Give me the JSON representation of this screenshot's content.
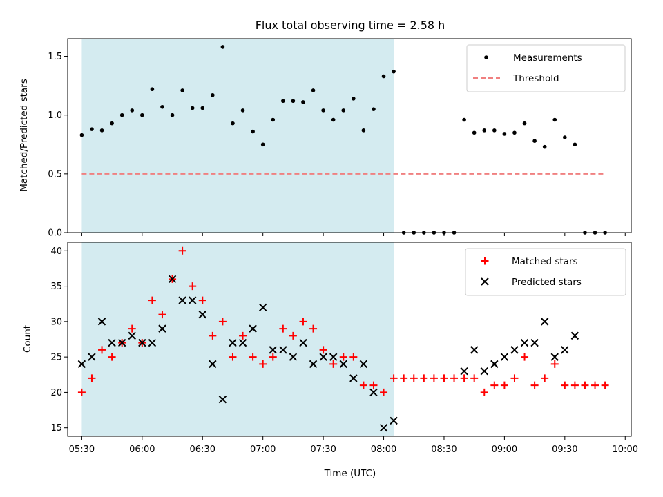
{
  "figure": {
    "title": "Flux total observing time = 2.58 h",
    "xlabel": "Time (UTC)",
    "highlight_span": [
      "05:30",
      "08:05"
    ],
    "highlight_color": "#d4ebf0"
  },
  "chart_data": [
    {
      "type": "scatter",
      "panel": "top",
      "ylabel": "Matched/Predicted stars",
      "xlim": [
        "05:23",
        "10:03"
      ],
      "ylim": [
        0,
        1.65
      ],
      "yticks": [
        "0.0",
        "0.5",
        "1.0",
        "1.5"
      ],
      "grid": false,
      "legend_position": "top-right",
      "series": [
        {
          "name": "Measurements",
          "color": "#000000",
          "marker": "dot",
          "x": [
            "05:30",
            "05:35",
            "05:40",
            "05:45",
            "05:50",
            "05:55",
            "06:00",
            "06:05",
            "06:10",
            "06:15",
            "06:20",
            "06:25",
            "06:30",
            "06:35",
            "06:40",
            "06:45",
            "06:50",
            "06:55",
            "07:00",
            "07:05",
            "07:10",
            "07:15",
            "07:20",
            "07:25",
            "07:30",
            "07:35",
            "07:40",
            "07:45",
            "07:50",
            "07:55",
            "08:00",
            "08:05",
            "08:10",
            "08:15",
            "08:20",
            "08:25",
            "08:30",
            "08:35",
            "08:40",
            "08:45",
            "08:50",
            "08:55",
            "09:00",
            "09:05",
            "09:10",
            "09:15",
            "09:20",
            "09:25",
            "09:30",
            "09:35",
            "09:40",
            "09:45",
            "09:50"
          ],
          "y": [
            0.83,
            0.88,
            0.87,
            0.93,
            1.0,
            1.04,
            1.0,
            1.22,
            1.07,
            1.0,
            1.21,
            1.06,
            1.06,
            1.17,
            1.58,
            0.93,
            1.04,
            0.86,
            0.75,
            0.96,
            1.12,
            1.12,
            1.11,
            1.21,
            1.04,
            0.96,
            1.04,
            1.14,
            0.87,
            1.05,
            1.33,
            1.37,
            0,
            0,
            0,
            0,
            0,
            0,
            0.96,
            0.85,
            0.87,
            0.87,
            0.84,
            0.85,
            0.93,
            0.78,
            0.73,
            0.96,
            0.81,
            0.75,
            0,
            0,
            0
          ]
        },
        {
          "name": "Threshold",
          "color": "#f08080",
          "style": "dashed",
          "x": [
            "05:30",
            "09:50"
          ],
          "y": [
            0.5,
            0.5
          ]
        }
      ]
    },
    {
      "type": "scatter",
      "panel": "bottom",
      "ylabel": "Count",
      "xlim": [
        "05:23",
        "10:03"
      ],
      "ylim": [
        13.8,
        41.2
      ],
      "yticks": [
        "15",
        "20",
        "25",
        "30",
        "35",
        "40"
      ],
      "xticks": [
        "05:30",
        "06:00",
        "06:30",
        "07:00",
        "07:30",
        "08:00",
        "08:30",
        "09:00",
        "09:30",
        "10:00"
      ],
      "grid": false,
      "legend_position": "top-right",
      "series": [
        {
          "name": "Matched stars",
          "color": "#ff0000",
          "marker": "plus",
          "x": [
            "05:30",
            "05:35",
            "05:40",
            "05:45",
            "05:50",
            "05:55",
            "06:00",
            "06:05",
            "06:10",
            "06:15",
            "06:20",
            "06:25",
            "06:30",
            "06:35",
            "06:40",
            "06:45",
            "06:50",
            "06:55",
            "07:00",
            "07:05",
            "07:10",
            "07:15",
            "07:20",
            "07:25",
            "07:30",
            "07:35",
            "07:40",
            "07:45",
            "07:50",
            "07:55",
            "08:00",
            "08:05",
            "08:10",
            "08:15",
            "08:20",
            "08:25",
            "08:30",
            "08:35",
            "08:40",
            "08:45",
            "08:50",
            "08:55",
            "09:00",
            "09:05",
            "09:10",
            "09:15",
            "09:20",
            "09:25",
            "09:30",
            "09:35",
            "09:40",
            "09:45",
            "09:50"
          ],
          "y": [
            20,
            22,
            26,
            25,
            27,
            29,
            27,
            33,
            31,
            36,
            40,
            35,
            33,
            28,
            30,
            25,
            28,
            25,
            24,
            25,
            29,
            28,
            30,
            29,
            26,
            24,
            25,
            25,
            21,
            21,
            20,
            22,
            22,
            22,
            22,
            22,
            22,
            22,
            22,
            22,
            20,
            21,
            21,
            22,
            25,
            21,
            22,
            24,
            21,
            21,
            21,
            21,
            21
          ]
        },
        {
          "name": "Predicted stars",
          "color": "#000000",
          "marker": "x",
          "x": [
            "05:30",
            "05:35",
            "05:40",
            "05:45",
            "05:50",
            "05:55",
            "06:00",
            "06:05",
            "06:10",
            "06:15",
            "06:20",
            "06:25",
            "06:30",
            "06:35",
            "06:40",
            "06:45",
            "06:50",
            "06:55",
            "07:00",
            "07:05",
            "07:10",
            "07:15",
            "07:20",
            "07:25",
            "07:30",
            "07:35",
            "07:40",
            "07:45",
            "07:50",
            "07:55",
            "08:00",
            "08:05",
            "08:40",
            "08:45",
            "08:50",
            "08:55",
            "09:00",
            "09:05",
            "09:10",
            "09:15",
            "09:20",
            "09:25",
            "09:30",
            "09:35"
          ],
          "y": [
            24,
            25,
            30,
            27,
            27,
            28,
            27,
            27,
            29,
            36,
            33,
            33,
            31,
            24,
            19,
            27,
            27,
            29,
            32,
            26,
            26,
            25,
            27,
            24,
            25,
            25,
            24,
            22,
            24,
            20,
            15,
            16,
            23,
            26,
            23,
            24,
            25,
            26,
            27,
            27,
            30,
            25,
            26,
            28
          ]
        }
      ]
    }
  ]
}
